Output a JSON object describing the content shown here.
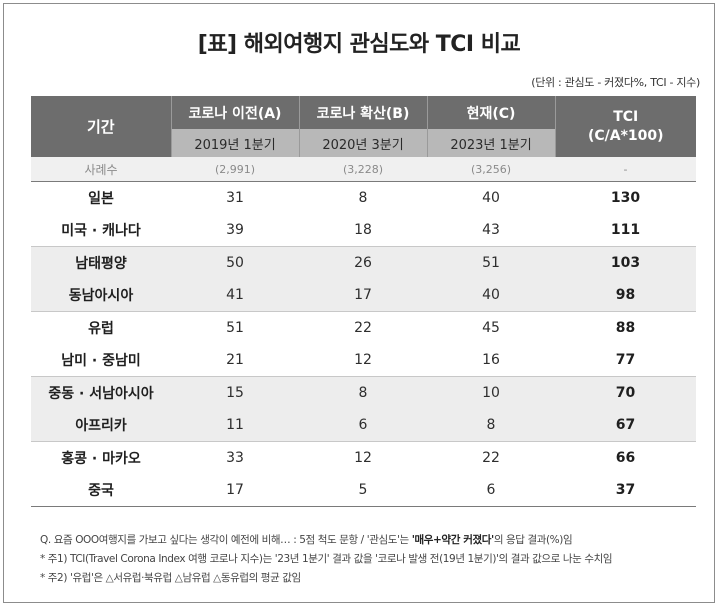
{
  "title": "[표] 해외여행지 관심도와 TCI 비교",
  "unit": "(단위 : 관심도 - 커졌다%, TCI - 지수)",
  "header": {
    "period": "기간",
    "col_a": "코로나 이전(A)",
    "col_b": "코로나 확산(B)",
    "col_c": "현재(C)",
    "col_tci": "TCI\n(C/A*100)",
    "sub_a": "2019년 1분기",
    "sub_b": "2020년 3분기",
    "sub_c": "2023년 1분기"
  },
  "cases": {
    "label": "사례수",
    "a": "(2,991)",
    "b": "(3,228)",
    "c": "(3,256)",
    "tci": "-"
  },
  "rows": [
    {
      "name": "일본",
      "a": "31",
      "b": "8",
      "c": "40",
      "tci": "130"
    },
    {
      "name": "미국 · 캐나다",
      "a": "39",
      "b": "18",
      "c": "43",
      "tci": "111"
    },
    {
      "name": "남태평양",
      "a": "50",
      "b": "26",
      "c": "51",
      "tci": "103"
    },
    {
      "name": "동남아시아",
      "a": "41",
      "b": "17",
      "c": "40",
      "tci": "98"
    },
    {
      "name": "유럽",
      "a": "51",
      "b": "22",
      "c": "45",
      "tci": "88"
    },
    {
      "name": "남미 · 중남미",
      "a": "21",
      "b": "12",
      "c": "16",
      "tci": "77"
    },
    {
      "name": "중동 · 서남아시아",
      "a": "15",
      "b": "8",
      "c": "10",
      "tci": "70"
    },
    {
      "name": "아프리카",
      "a": "11",
      "b": "6",
      "c": "8",
      "tci": "67"
    },
    {
      "name": "홍콩 · 마카오",
      "a": "33",
      "b": "12",
      "c": "22",
      "tci": "66"
    },
    {
      "name": "중국",
      "a": "17",
      "b": "5",
      "c": "6",
      "tci": "37"
    }
  ],
  "notes": {
    "q_pre": "Q. 요즘 OOO여행지를 가보고 싶다는 생각이 예전에 비해… : 5점 척도 문항 / '관심도'는 ",
    "q_bold": "'매우+약간 커졌다'",
    "q_post": "의 응답 결과(%)임",
    "n1": "* 주1) TCI(Travel Corona Index 여행 코로나 지수)는 '23년 1분기' 결과 값을 '코로나 발생 전(19년 1분기)'의 결과 값으로 나눈 수치임",
    "n2": "* 주2) '유럽'은 △서유럽·북유럽 △남유럽 △동유럽의 평균 값임"
  }
}
